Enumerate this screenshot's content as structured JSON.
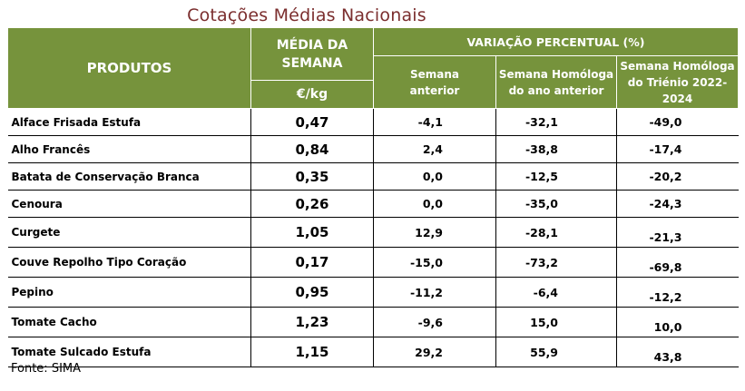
{
  "title": "Cotações Médias Nacionais",
  "header": {
    "produtos": "PRODUTOS",
    "media_line1": "MÉDIA DA",
    "media_line2": "SEMANA",
    "unit": "€/kg",
    "variacao": "VARIAÇÃO PERCENTUAL (%)",
    "sub1_line1": "Semana",
    "sub1_line2": "anterior",
    "sub2_line1": "Semana Homóloga",
    "sub2_line2": "do ano anterior",
    "sub3_line1": "Semana Homóloga",
    "sub3_line2": "do Triénio 2022-",
    "sub3_line3": "2024"
  },
  "rows": [
    {
      "produto": "Alface Frisada Estufa",
      "media": "0,47",
      "semana_anterior": "-4,1",
      "ano_anterior": "-32,1",
      "trienio": "-49,0"
    },
    {
      "produto": "Alho Francês",
      "media": "0,84",
      "semana_anterior": "2,4",
      "ano_anterior": "-38,8",
      "trienio": "-17,4"
    },
    {
      "produto": "Batata de Conservação Branca",
      "media": "0,35",
      "semana_anterior": "0,0",
      "ano_anterior": "-12,5",
      "trienio": "-20,2"
    },
    {
      "produto": "Cenoura",
      "media": "0,26",
      "semana_anterior": "0,0",
      "ano_anterior": "-35,0",
      "trienio": "-24,3"
    },
    {
      "produto": "Curgete",
      "media": "1,05",
      "semana_anterior": "12,9",
      "ano_anterior": "-28,1",
      "trienio": "-21,3"
    },
    {
      "produto": "Couve Repolho Tipo Coração",
      "media": "0,17",
      "semana_anterior": "-15,0",
      "ano_anterior": "-73,2",
      "trienio": "-69,8"
    },
    {
      "produto": "Pepino",
      "media": "0,95",
      "semana_anterior": "-11,2",
      "ano_anterior": "-6,4",
      "trienio": "-12,2"
    },
    {
      "produto": "Tomate Cacho",
      "media": "1,23",
      "semana_anterior": "-9,6",
      "ano_anterior": "15,0",
      "trienio": "10,0"
    },
    {
      "produto": "Tomate Sulcado Estufa",
      "media": "1,15",
      "semana_anterior": "29,2",
      "ano_anterior": "55,9",
      "trienio": "43,8"
    }
  ],
  "source": "Fonte: SIMA"
}
